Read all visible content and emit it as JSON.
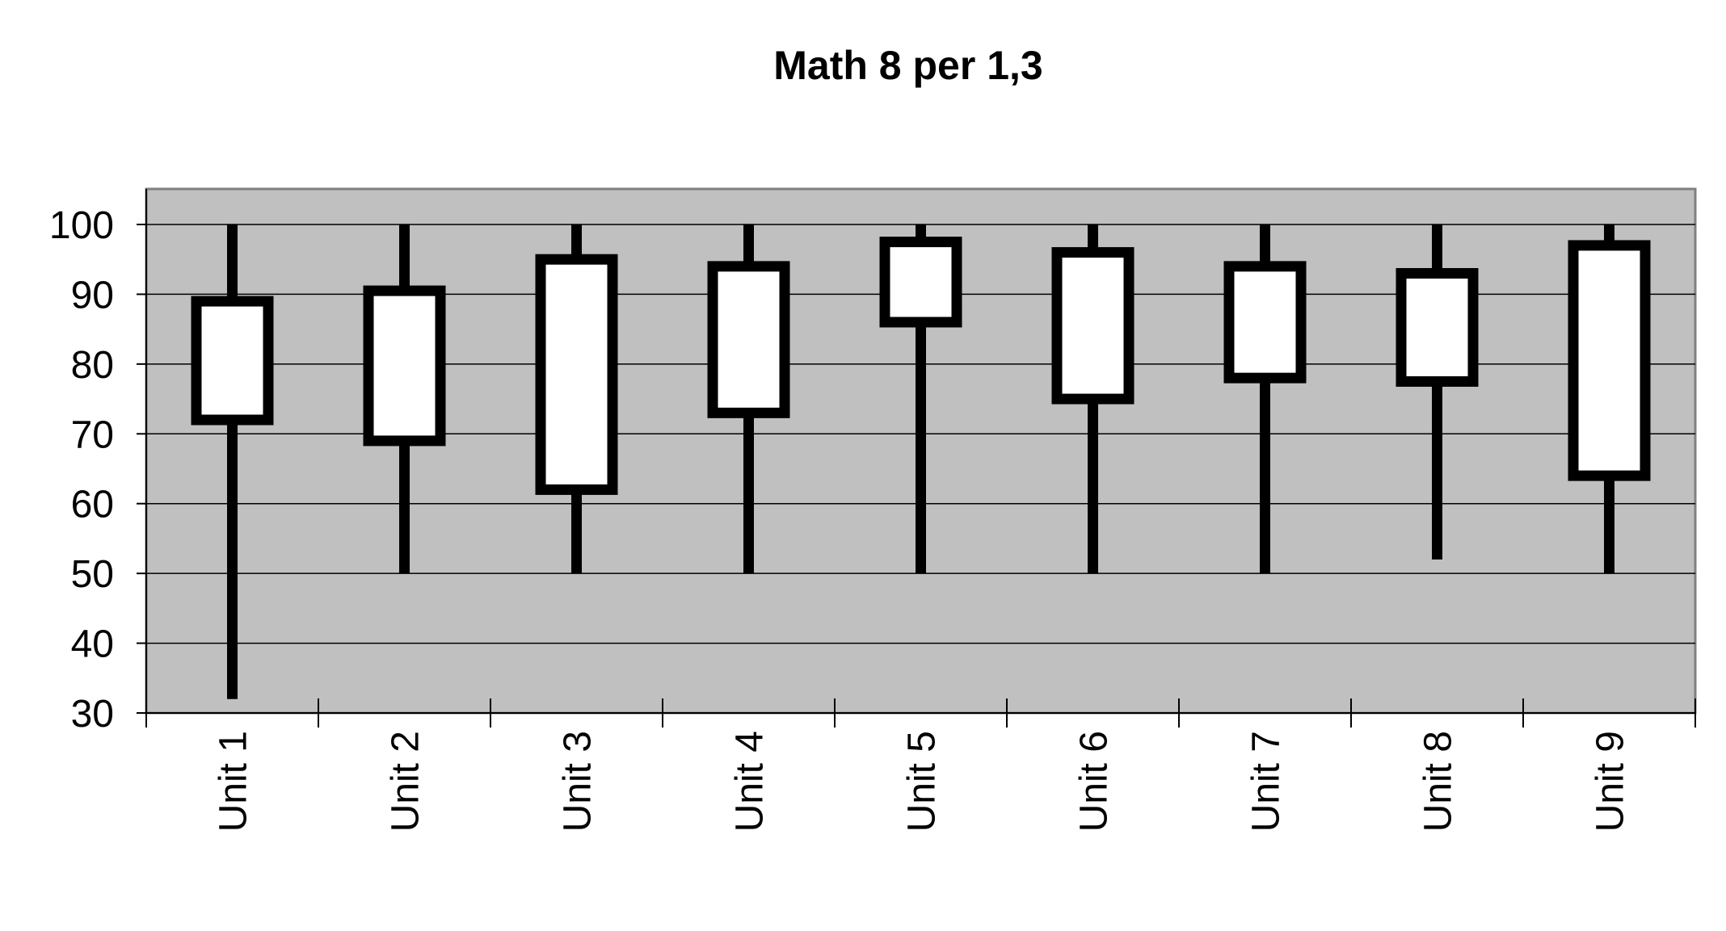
{
  "chart_data": {
    "type": "box",
    "title": "Math 8 per 1,3",
    "xlabel": "",
    "ylabel": "",
    "ylim": [
      30,
      100
    ],
    "yticks": [
      "30",
      "40",
      "50",
      "60",
      "70",
      "80",
      "90",
      "100"
    ],
    "grid": true,
    "legend": "none",
    "categories": [
      "Unit 1",
      "Unit 2",
      "Unit 3",
      "Unit 4",
      "Unit 5",
      "Unit 6",
      "Unit 7",
      "Unit 8",
      "Unit 9"
    ],
    "min": [
      32,
      50,
      50,
      50,
      50,
      50,
      50,
      52,
      50
    ],
    "q1": [
      72,
      69,
      62,
      73,
      86,
      75,
      78,
      77.5,
      64
    ],
    "q3": [
      89,
      90.5,
      95,
      94,
      97.5,
      96,
      94,
      93,
      97
    ],
    "max": [
      100,
      100,
      100,
      100,
      100,
      100,
      100,
      100,
      100
    ],
    "colors": {
      "plot_background": "#c0c0c0",
      "box_fill": "#ffffff",
      "stroke": "#000000",
      "gridline": "#000000",
      "page_background": "#ffffff"
    }
  }
}
